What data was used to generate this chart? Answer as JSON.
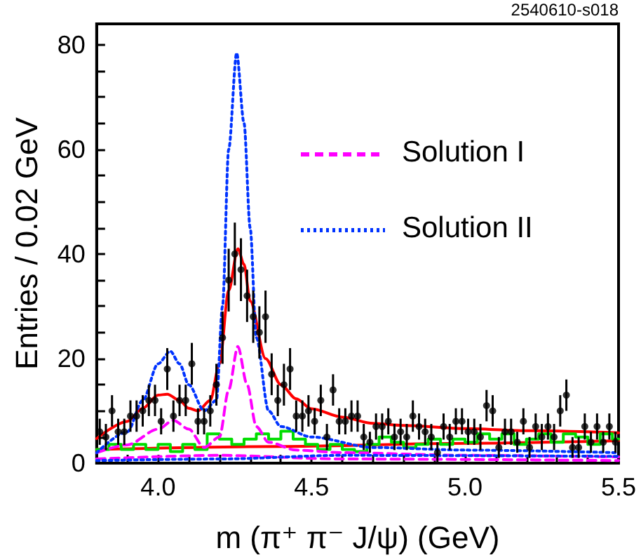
{
  "chart_data": {
    "type": "scatter",
    "xlabel": "m (π⁺ π⁻ J/ψ) (GeV)",
    "ylabel": "Entries / 0.02 GeV",
    "annotations": [
      "2540610-s018"
    ],
    "xlim": [
      3.8,
      5.5
    ],
    "xticks": [
      {
        "value": 3.8,
        "label": null
      },
      {
        "value": 3.9,
        "label": null
      },
      {
        "value": 4.0,
        "label": "4.0"
      },
      {
        "value": 4.1,
        "label": null
      },
      {
        "value": 4.2,
        "label": null
      },
      {
        "value": 4.3,
        "label": null
      },
      {
        "value": 4.4,
        "label": null
      },
      {
        "value": 4.5,
        "label": "4.5"
      },
      {
        "value": 4.6,
        "label": null
      },
      {
        "value": 4.7,
        "label": null
      },
      {
        "value": 4.8,
        "label": null
      },
      {
        "value": 4.9,
        "label": null
      },
      {
        "value": 5.0,
        "label": "5.0"
      },
      {
        "value": 5.1,
        "label": null
      },
      {
        "value": 5.2,
        "label": null
      },
      {
        "value": 5.3,
        "label": null
      },
      {
        "value": 5.4,
        "label": null
      },
      {
        "value": 5.5,
        "label": "5.5"
      }
    ],
    "ylim": [
      0,
      84
    ],
    "yticks": [
      0,
      {
        "value": 5,
        "label": null
      },
      {
        "value": 10,
        "label": null
      },
      {
        "value": 15,
        "label": null
      },
      20,
      {
        "value": 25,
        "label": null
      },
      {
        "value": 30,
        "label": null
      },
      {
        "value": 35,
        "label": null
      },
      40,
      {
        "value": 45,
        "label": null
      },
      {
        "value": 50,
        "label": null
      },
      {
        "value": 55,
        "label": null
      },
      60,
      {
        "value": 65,
        "label": null
      },
      {
        "value": 70,
        "label": null
      },
      {
        "value": 75,
        "label": null
      },
      80
    ],
    "legend": "top right",
    "series": [
      {
        "color": "#000000",
        "marker": "circle",
        "x": [
          3.81,
          3.83,
          3.85,
          3.87,
          3.89,
          3.91,
          3.93,
          3.95,
          3.97,
          3.99,
          4.01,
          4.03,
          4.05,
          4.07,
          4.09,
          4.11,
          4.13,
          4.15,
          4.17,
          4.19,
          4.21,
          4.23,
          4.25,
          4.27,
          4.29,
          4.31,
          4.33,
          4.35,
          4.37,
          4.39,
          4.41,
          4.43,
          4.45,
          4.47,
          4.49,
          4.51,
          4.53,
          4.55,
          4.57,
          4.59,
          4.61,
          4.63,
          4.65,
          4.67,
          4.69,
          4.71,
          4.73,
          4.75,
          4.77,
          4.79,
          4.81,
          4.83,
          4.85,
          4.87,
          4.89,
          4.91,
          4.93,
          4.95,
          4.97,
          4.99,
          5.01,
          5.03,
          5.05,
          5.07,
          5.09,
          5.11,
          5.13,
          5.15,
          5.17,
          5.19,
          5.21,
          5.23,
          5.25,
          5.27,
          5.29,
          5.31,
          5.33,
          5.35,
          5.37,
          5.39,
          5.41,
          5.43,
          5.45,
          5.47,
          5.49
        ],
        "values": [
          6,
          5,
          10,
          6,
          6,
          9,
          9,
          10,
          12,
          12,
          8,
          18,
          9,
          12,
          12,
          19,
          8,
          8,
          10,
          15,
          24,
          35,
          40,
          37,
          32,
          28,
          25,
          28,
          17,
          12,
          15,
          18,
          9,
          9,
          10,
          8,
          12,
          5,
          14,
          8,
          8,
          9,
          9,
          5,
          4,
          7,
          7,
          8,
          5,
          6,
          5,
          9,
          7,
          6,
          5,
          2,
          7,
          5,
          8,
          8,
          6,
          6,
          5,
          11,
          10,
          3,
          6,
          6,
          4,
          8,
          3,
          7,
          5,
          7,
          5,
          10,
          13,
          3,
          3,
          7,
          4,
          7,
          4,
          7,
          4
        ],
        "errors": [
          2.5,
          2.5,
          3,
          2.5,
          2.5,
          3,
          3,
          3,
          3,
          3,
          2.5,
          4,
          3,
          3,
          3,
          4,
          2.5,
          2.5,
          3,
          4,
          5,
          6,
          6,
          6,
          5,
          5,
          5,
          5,
          4,
          3,
          4,
          4,
          3,
          3,
          3,
          2.5,
          3,
          2.5,
          3,
          2.5,
          2.5,
          3,
          3,
          2.5,
          2,
          2.5,
          2.5,
          2.5,
          2.5,
          2.5,
          2.5,
          3,
          2.5,
          2.5,
          2.5,
          2,
          2.5,
          2.5,
          2.5,
          2.5,
          2.5,
          2.5,
          2.5,
          3,
          3,
          2,
          2.5,
          2.5,
          2,
          2.5,
          2,
          2.5,
          2.5,
          2.5,
          2.5,
          3,
          3,
          2,
          2,
          2.5,
          2,
          2.5,
          2,
          2.5,
          2
        ]
      },
      {
        "type": "line",
        "color": "#ff0000",
        "line_style": "solid",
        "x": [
          3.8,
          3.9,
          3.95,
          4.0,
          4.03,
          4.07,
          4.1,
          4.13,
          4.17,
          4.2,
          4.23,
          4.26,
          4.28,
          4.3,
          4.35,
          4.4,
          4.45,
          4.5,
          4.6,
          4.7,
          4.8,
          5.0,
          5.2,
          5.5
        ],
        "values": [
          4.7,
          8,
          10.5,
          13,
          13.2,
          12,
          10.5,
          10,
          12,
          19,
          33,
          41,
          38,
          31,
          20,
          15,
          12.3,
          10.4,
          8.8,
          7.6,
          7.2,
          6.6,
          6.2,
          5.8
        ]
      },
      {
        "type": "line",
        "color": "#ff0000",
        "line_style": "solid",
        "x": [
          3.8,
          4.4,
          5.0,
          5.5
        ],
        "values": [
          2.6,
          3.2,
          3.8,
          4.3
        ]
      },
      {
        "type": "step",
        "color": "#00dd00",
        "x": [
          3.8,
          3.84,
          3.88,
          3.92,
          3.96,
          4.0,
          4.04,
          4.08,
          4.12,
          4.16,
          4.2,
          4.24,
          4.28,
          4.32,
          4.36,
          4.4,
          4.44,
          4.48,
          4.52,
          4.56,
          4.6,
          4.64,
          4.68,
          4.72,
          4.76,
          4.8,
          4.84,
          4.88,
          4.92,
          4.96,
          5.0,
          5.04,
          5.08,
          5.12,
          5.16,
          5.2,
          5.24,
          5.28,
          5.32,
          5.36,
          5.4,
          5.44,
          5.48,
          5.5
        ],
        "values": [
          2.6,
          3.6,
          2.6,
          3.6,
          2.6,
          3.6,
          2.2,
          3.6,
          2.6,
          5.6,
          4.6,
          3.6,
          4.6,
          5.6,
          4.6,
          6.1,
          4.6,
          3.6,
          2.6,
          3.6,
          2.6,
          2.2,
          3.6,
          5,
          4,
          3,
          3.6,
          4.6,
          3.6,
          4.6,
          4,
          5.6,
          4.6,
          5.6,
          3.6,
          4.6,
          5.6,
          4,
          5.6,
          5,
          3.6,
          5.6,
          4.6,
          4.6
        ]
      },
      {
        "type": "line",
        "name": "Solution I",
        "color": "#ff00ff",
        "line_style": "dashed",
        "x": [
          3.8,
          3.9,
          4.0,
          4.05,
          4.1,
          4.15,
          4.2,
          4.23,
          4.26,
          4.29,
          4.32,
          4.36,
          4.45,
          4.6,
          5.0,
          5.5
        ],
        "values": [
          2,
          3.5,
          6.5,
          8.2,
          6.5,
          3,
          5,
          14,
          22.3,
          15,
          7,
          4,
          2.5,
          2,
          1.5,
          1.2
        ]
      },
      {
        "type": "line",
        "name": "Solution II",
        "color": "#0033ff",
        "line_style": "dotted",
        "x": [
          3.8,
          3.9,
          3.95,
          4.0,
          4.04,
          4.07,
          4.1,
          4.15,
          4.19,
          4.21,
          4.23,
          4.256,
          4.28,
          4.3,
          4.32,
          4.36,
          4.4,
          4.5,
          4.7,
          5.0,
          5.5
        ],
        "values": [
          2,
          6,
          12,
          19,
          21.4,
          19,
          15,
          10,
          12,
          30,
          60,
          78.4,
          65,
          45,
          24,
          10,
          7,
          5,
          3,
          2.5,
          2
        ]
      },
      {
        "type": "line",
        "color": "#ff00ff",
        "line_style": "dashed",
        "x": [
          3.8,
          4.2,
          4.6,
          5.5
        ],
        "values": [
          0.8,
          1.5,
          0.8,
          0.5
        ]
      },
      {
        "type": "line",
        "color": "#0033ff",
        "line_style": "dotted",
        "x": [
          3.8,
          4.2,
          4.6,
          5.5
        ],
        "values": [
          0.5,
          0.8,
          1.5,
          1.3
        ]
      }
    ]
  }
}
